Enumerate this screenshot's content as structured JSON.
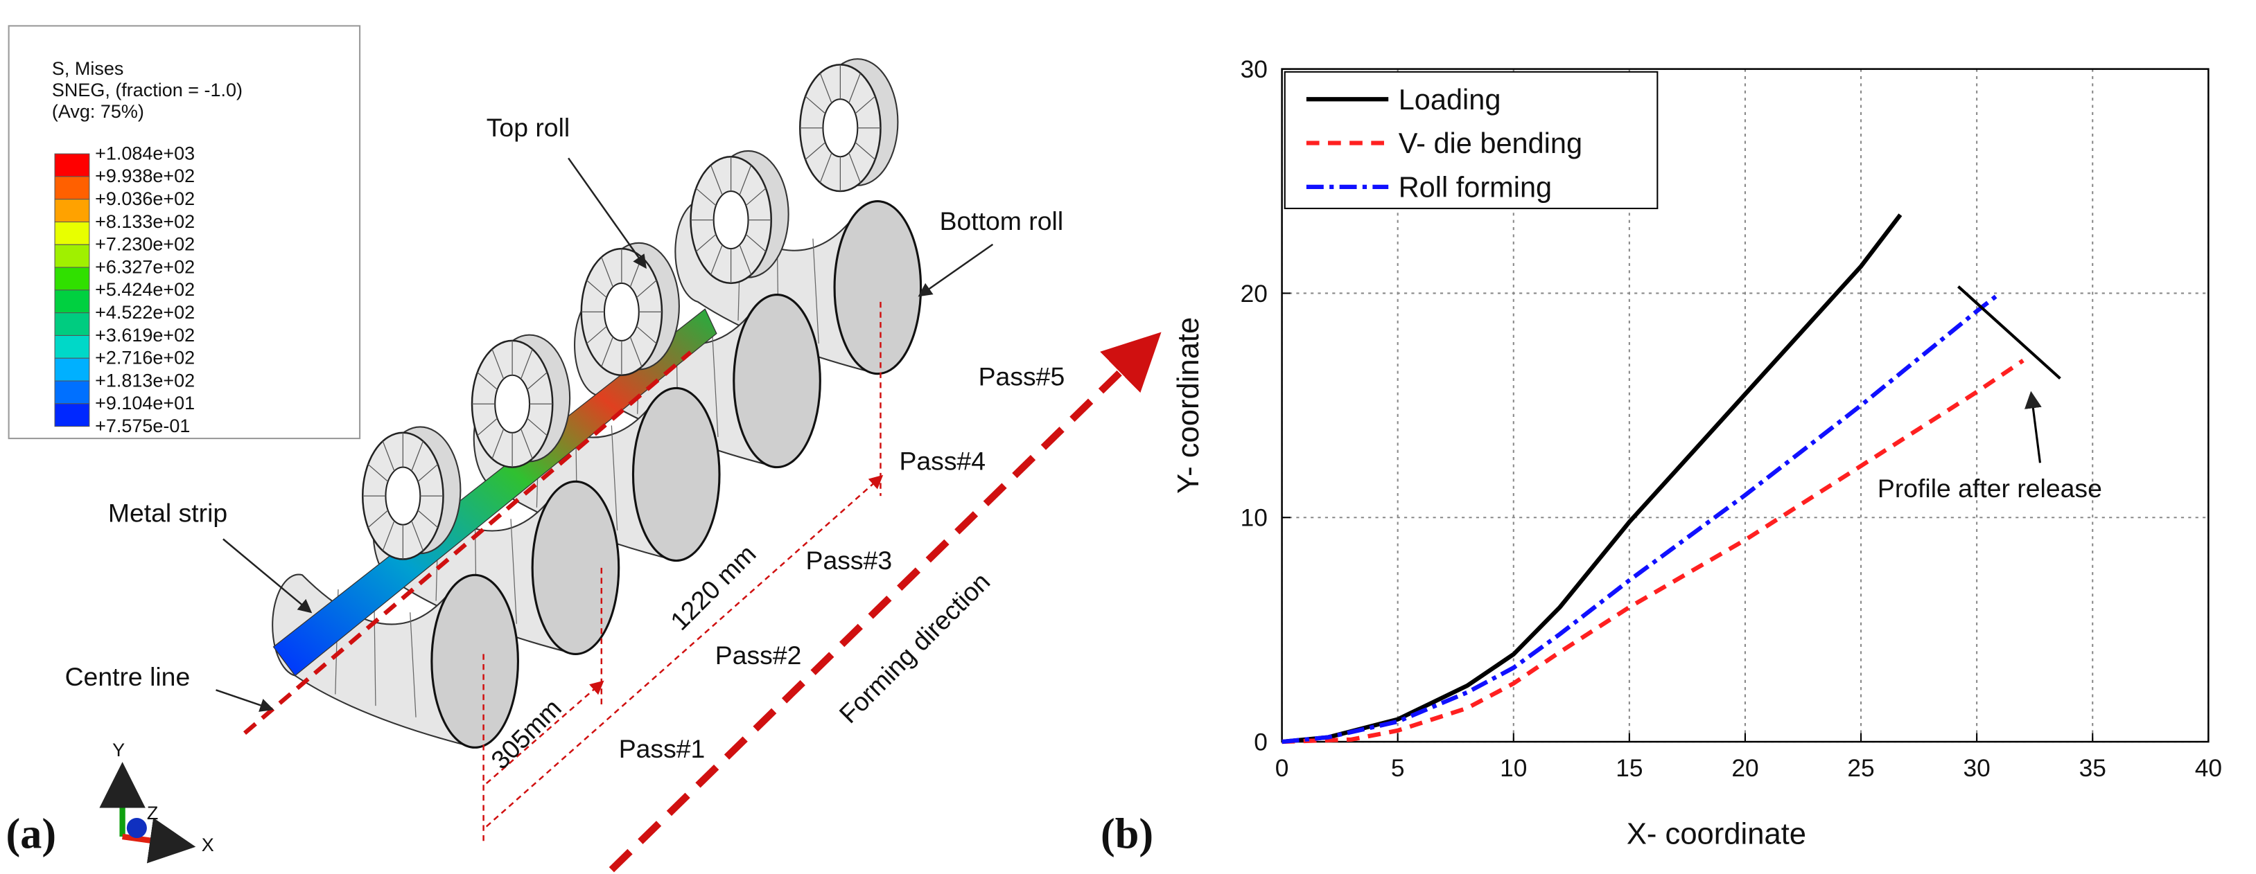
{
  "panel_a": {
    "label": "(a)",
    "contour_legend": {
      "lines": [
        "S, Mises",
        "SNEG, (fraction = -1.0)",
        "(Avg: 75%)"
      ],
      "values": [
        "+1.084e+03",
        "+9.938e+02",
        "+9.036e+02",
        "+8.133e+02",
        "+7.230e+02",
        "+6.327e+02",
        "+5.424e+02",
        "+4.522e+02",
        "+3.619e+02",
        "+2.716e+02",
        "+1.813e+02",
        "+9.104e+01",
        "+7.575e-01"
      ],
      "colors": [
        "#ff0000",
        "#ff6000",
        "#ffa200",
        "#e8ff00",
        "#a0f000",
        "#30e000",
        "#00d040",
        "#00cc80",
        "#00d8c8",
        "#00b0ff",
        "#0070ff",
        "#0028ff"
      ]
    },
    "annotations": {
      "top_roll": "Top roll",
      "bottom_roll": "Bottom roll",
      "metal_strip": "Metal strip",
      "centre_line": "Centre line",
      "pass1": "Pass#1",
      "pass2": "Pass#2",
      "pass3": "Pass#3",
      "pass4": "Pass#4",
      "pass5": "Pass#5",
      "dim_long": "1220 mm",
      "dim_short": "305mm",
      "forming_direction": "Forming direction"
    },
    "triad": {
      "y": "Y",
      "z": "Z",
      "x": "X"
    }
  },
  "chart_data": {
    "type": "line",
    "panel_label": "(b)",
    "x_label": "X- coordinate",
    "y_label": "Y- coordinate",
    "xlim": [
      0,
      40
    ],
    "ylim": [
      0,
      30
    ],
    "xticks": [
      0,
      5,
      10,
      15,
      20,
      25,
      30,
      35,
      40
    ],
    "yticks": [
      0,
      10,
      20,
      30
    ],
    "grid": true,
    "legend": "upper left",
    "series": [
      {
        "name": "Loading",
        "color": "#000000",
        "dash": "solid",
        "x": [
          0,
          2,
          5,
          8,
          10,
          12,
          15,
          20,
          25,
          26.7
        ],
        "values": [
          0,
          0.2,
          1,
          2.5,
          3.9,
          6,
          9.8,
          15.5,
          21.2,
          23.5
        ]
      },
      {
        "name": "V- die bending",
        "color": "#ff2020",
        "dash": "dashed",
        "x": [
          0,
          3,
          5,
          8,
          10,
          12,
          15,
          20,
          25,
          30,
          32
        ],
        "values": [
          0,
          0.1,
          0.5,
          1.5,
          2.6,
          4,
          6,
          9,
          12.3,
          15.6,
          17
        ]
      },
      {
        "name": "Roll forming",
        "color": "#1010ff",
        "dash": "dashdot",
        "x": [
          0,
          2,
          5,
          8,
          10,
          12,
          15,
          20,
          25,
          30,
          31
        ],
        "values": [
          0,
          0.2,
          0.9,
          2.2,
          3.3,
          4.8,
          7.2,
          11,
          15,
          19.2,
          20
        ]
      }
    ],
    "annotation": {
      "text": "Profile after release",
      "x": [
        29.2,
        33.6
      ],
      "values": [
        20.3,
        16.2
      ]
    }
  }
}
